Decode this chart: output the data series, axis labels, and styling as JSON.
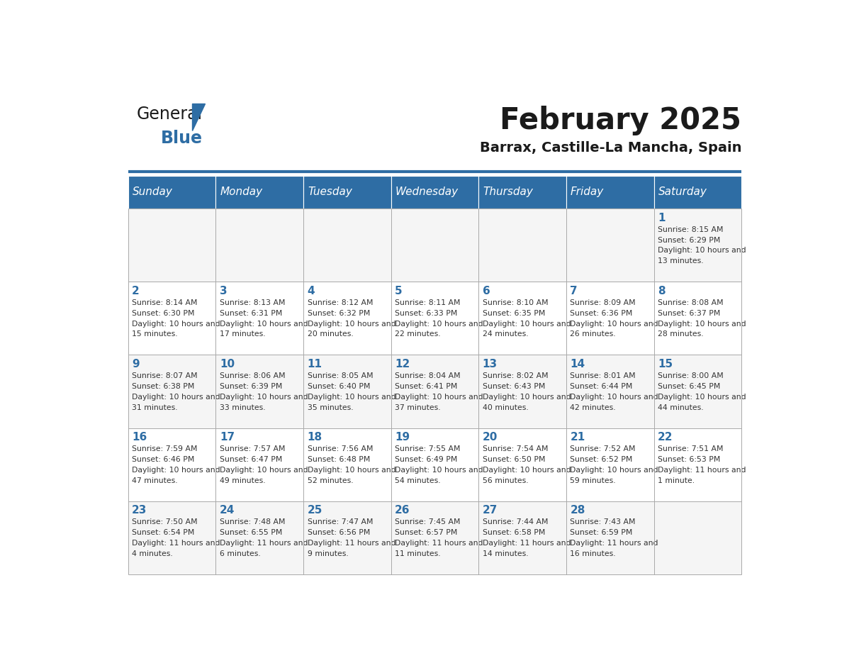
{
  "title": "February 2025",
  "subtitle": "Barrax, Castille-La Mancha, Spain",
  "header_bg": "#2E6DA4",
  "header_text": "#FFFFFF",
  "cell_bg_light": "#F5F5F5",
  "cell_bg_white": "#FFFFFF",
  "cell_text": "#333333",
  "grid_line": "#AAAAAA",
  "days_of_week": [
    "Sunday",
    "Monday",
    "Tuesday",
    "Wednesday",
    "Thursday",
    "Friday",
    "Saturday"
  ],
  "calendar_data": [
    [
      null,
      null,
      null,
      null,
      null,
      null,
      {
        "day": 1,
        "sunrise": "8:15 AM",
        "sunset": "6:29 PM",
        "daylight": "10 hours and 13 minutes."
      }
    ],
    [
      {
        "day": 2,
        "sunrise": "8:14 AM",
        "sunset": "6:30 PM",
        "daylight": "10 hours and 15 minutes."
      },
      {
        "day": 3,
        "sunrise": "8:13 AM",
        "sunset": "6:31 PM",
        "daylight": "10 hours and 17 minutes."
      },
      {
        "day": 4,
        "sunrise": "8:12 AM",
        "sunset": "6:32 PM",
        "daylight": "10 hours and 20 minutes."
      },
      {
        "day": 5,
        "sunrise": "8:11 AM",
        "sunset": "6:33 PM",
        "daylight": "10 hours and 22 minutes."
      },
      {
        "day": 6,
        "sunrise": "8:10 AM",
        "sunset": "6:35 PM",
        "daylight": "10 hours and 24 minutes."
      },
      {
        "day": 7,
        "sunrise": "8:09 AM",
        "sunset": "6:36 PM",
        "daylight": "10 hours and 26 minutes."
      },
      {
        "day": 8,
        "sunrise": "8:08 AM",
        "sunset": "6:37 PM",
        "daylight": "10 hours and 28 minutes."
      }
    ],
    [
      {
        "day": 9,
        "sunrise": "8:07 AM",
        "sunset": "6:38 PM",
        "daylight": "10 hours and 31 minutes."
      },
      {
        "day": 10,
        "sunrise": "8:06 AM",
        "sunset": "6:39 PM",
        "daylight": "10 hours and 33 minutes."
      },
      {
        "day": 11,
        "sunrise": "8:05 AM",
        "sunset": "6:40 PM",
        "daylight": "10 hours and 35 minutes."
      },
      {
        "day": 12,
        "sunrise": "8:04 AM",
        "sunset": "6:41 PM",
        "daylight": "10 hours and 37 minutes."
      },
      {
        "day": 13,
        "sunrise": "8:02 AM",
        "sunset": "6:43 PM",
        "daylight": "10 hours and 40 minutes."
      },
      {
        "day": 14,
        "sunrise": "8:01 AM",
        "sunset": "6:44 PM",
        "daylight": "10 hours and 42 minutes."
      },
      {
        "day": 15,
        "sunrise": "8:00 AM",
        "sunset": "6:45 PM",
        "daylight": "10 hours and 44 minutes."
      }
    ],
    [
      {
        "day": 16,
        "sunrise": "7:59 AM",
        "sunset": "6:46 PM",
        "daylight": "10 hours and 47 minutes."
      },
      {
        "day": 17,
        "sunrise": "7:57 AM",
        "sunset": "6:47 PM",
        "daylight": "10 hours and 49 minutes."
      },
      {
        "day": 18,
        "sunrise": "7:56 AM",
        "sunset": "6:48 PM",
        "daylight": "10 hours and 52 minutes."
      },
      {
        "day": 19,
        "sunrise": "7:55 AM",
        "sunset": "6:49 PM",
        "daylight": "10 hours and 54 minutes."
      },
      {
        "day": 20,
        "sunrise": "7:54 AM",
        "sunset": "6:50 PM",
        "daylight": "10 hours and 56 minutes."
      },
      {
        "day": 21,
        "sunrise": "7:52 AM",
        "sunset": "6:52 PM",
        "daylight": "10 hours and 59 minutes."
      },
      {
        "day": 22,
        "sunrise": "7:51 AM",
        "sunset": "6:53 PM",
        "daylight": "11 hours and 1 minute."
      }
    ],
    [
      {
        "day": 23,
        "sunrise": "7:50 AM",
        "sunset": "6:54 PM",
        "daylight": "11 hours and 4 minutes."
      },
      {
        "day": 24,
        "sunrise": "7:48 AM",
        "sunset": "6:55 PM",
        "daylight": "11 hours and 6 minutes."
      },
      {
        "day": 25,
        "sunrise": "7:47 AM",
        "sunset": "6:56 PM",
        "daylight": "11 hours and 9 minutes."
      },
      {
        "day": 26,
        "sunrise": "7:45 AM",
        "sunset": "6:57 PM",
        "daylight": "11 hours and 11 minutes."
      },
      {
        "day": 27,
        "sunrise": "7:44 AM",
        "sunset": "6:58 PM",
        "daylight": "11 hours and 14 minutes."
      },
      {
        "day": 28,
        "sunrise": "7:43 AM",
        "sunset": "6:59 PM",
        "daylight": "11 hours and 16 minutes."
      },
      null
    ]
  ],
  "logo_general_color": "#1a1a1a",
  "logo_blue_color": "#2E6DA4",
  "logo_triangle_color": "#2E6DA4"
}
